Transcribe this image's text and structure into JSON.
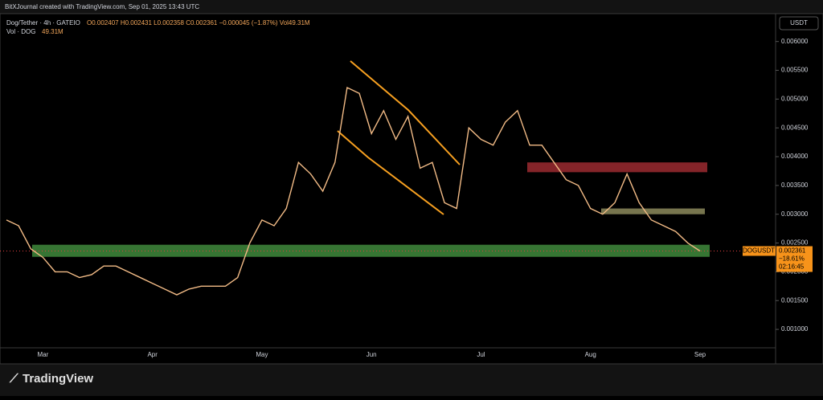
{
  "header": "BitXJournal created with TradingView.com, Sep 01, 2025 13:43 UTC",
  "legend": {
    "symbol": "Dog/Tether · 4h · GATEIO",
    "ohlc": "O0.002407 H0.002431 L0.002358 C0.002361 −0.000045 (−1.87%) Vol49.31M",
    "volume": "Vol · DOG",
    "volume_value": "49.31M"
  },
  "currency": "USDT",
  "price_tag": {
    "symbol": "DOGUSDT",
    "price": "0.002361",
    "change": "−18.61%",
    "countdown": "02:16:45"
  },
  "footer": "TradingView",
  "chart_data": {
    "type": "line",
    "categories": [
      null,
      null,
      null,
      "Mar",
      null,
      null,
      null,
      null,
      null,
      null,
      null,
      null,
      "Apr",
      null,
      null,
      null,
      null,
      null,
      null,
      null,
      null,
      "May",
      null,
      null,
      null,
      null,
      null,
      null,
      null,
      null,
      "Jun",
      null,
      null,
      null,
      null,
      null,
      null,
      null,
      null,
      "Jul",
      null,
      null,
      null,
      null,
      null,
      null,
      null,
      null,
      "Aug",
      null,
      null,
      null,
      null,
      null,
      null,
      null,
      null,
      "Sep"
    ],
    "series": [
      {
        "name": "DOGUSDT",
        "color": "#f2bb86",
        "values": [
          0.0029,
          0.0028,
          0.0024,
          0.00225,
          0.002,
          0.002,
          0.0019,
          0.00195,
          0.0021,
          0.0021,
          0.002,
          0.0019,
          0.0018,
          0.0017,
          0.0016,
          0.0017,
          0.00175,
          0.00175,
          0.00175,
          0.0019,
          0.0025,
          0.0029,
          0.0028,
          0.0031,
          0.0039,
          0.0037,
          0.0034,
          0.0039,
          0.0052,
          0.0051,
          0.0044,
          0.0048,
          0.0043,
          0.0047,
          0.0038,
          0.0039,
          0.0032,
          0.0031,
          0.0045,
          0.0043,
          0.0042,
          0.0046,
          0.0048,
          0.0042,
          0.0042,
          0.0039,
          0.0036,
          0.0035,
          0.0031,
          0.003,
          0.0032,
          0.0037,
          0.0032,
          0.0029,
          0.0028,
          0.0027,
          0.0025,
          0.002361
        ]
      }
    ],
    "ylim": [
      0.00068,
      0.00647
    ],
    "yticks": [
      {
        "value": 0.001,
        "label": "0.001000"
      },
      {
        "value": 0.0015,
        "label": "0.001500"
      },
      {
        "value": 0.002,
        "label": "0.002000"
      },
      {
        "value": 0.0025,
        "label": "0.002500"
      },
      {
        "value": 0.003,
        "label": "0.003000"
      },
      {
        "value": 0.0035,
        "label": "0.003500"
      },
      {
        "value": 0.004,
        "label": "0.004000"
      },
      {
        "value": 0.0045,
        "label": "0.004500"
      },
      {
        "value": 0.005,
        "label": "0.005000"
      },
      {
        "value": 0.0055,
        "label": "0.005500"
      },
      {
        "value": 0.006,
        "label": "0.006000"
      }
    ],
    "zones": [
      {
        "from": 0.00226,
        "to": 0.00247,
        "color": "#3f8a3c"
      },
      {
        "from": 0.00373,
        "to": 0.0039,
        "color": "#9b2a30"
      },
      {
        "from": 0.003,
        "to": 0.0031,
        "color": "#8c8a5c"
      }
    ],
    "last_price": 0.002361,
    "last_color": "#f7931a",
    "grid": false
  }
}
